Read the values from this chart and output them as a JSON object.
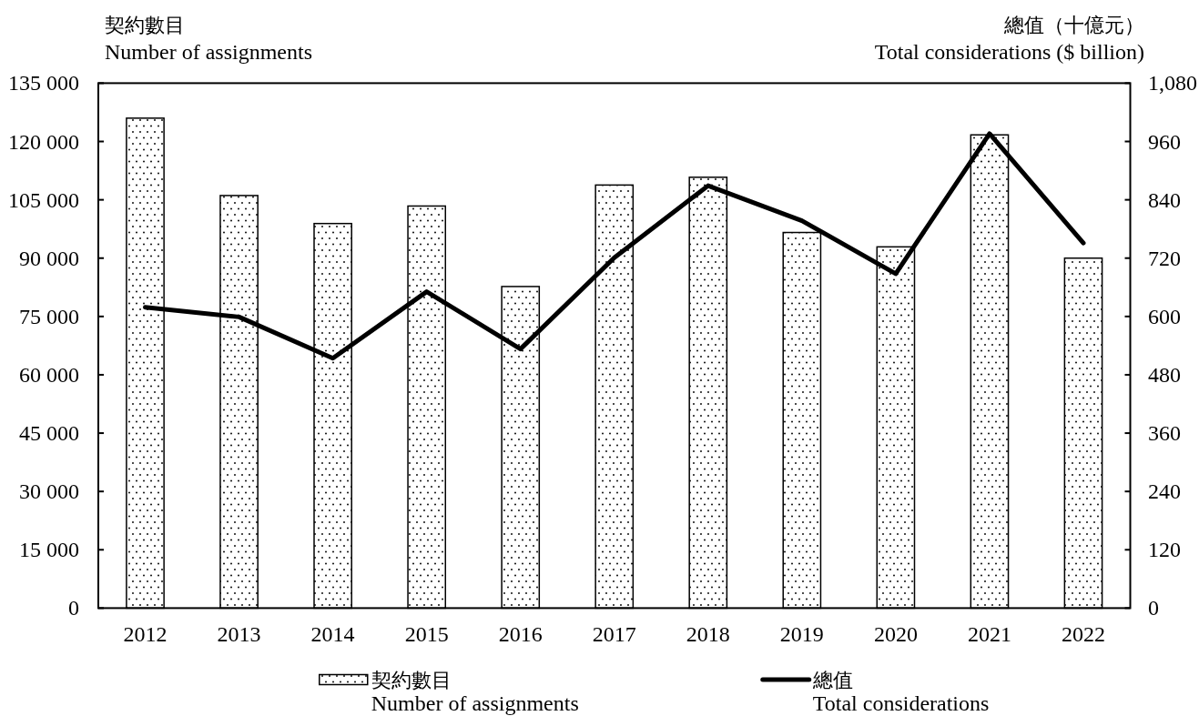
{
  "chart_data": {
    "type": "bar",
    "ylabel": "契約數目\nNumber of assignments",
    "y2label": "總值（十億元）\nTotal considerations ($ billion)",
    "categories": [
      "2012",
      "2013",
      "2014",
      "2015",
      "2016",
      "2017",
      "2018",
      "2019",
      "2020",
      "2021",
      "2022"
    ],
    "series": [
      {
        "name": "契約數目\nNumber of assignments",
        "color": "#000000",
        "values": [
          126000,
          106100,
          98900,
          103400,
          82700,
          108800,
          110800,
          96600,
          92900,
          121700,
          90000
        ]
      },
      {
        "name": "總值\nTotal considerations",
        "type": "line",
        "axis": "y2",
        "color": "#000000",
        "values": [
          619,
          599,
          514,
          651,
          533,
          721,
          869,
          797,
          688,
          976,
          751
        ]
      }
    ],
    "ylim": [
      0,
      135000
    ],
    "yticks": [
      0,
      {
        "value": 15000,
        "label": "15 000"
      },
      {
        "value": 30000,
        "label": "30 000"
      },
      {
        "value": 45000,
        "label": "45 000"
      },
      {
        "value": 60000,
        "label": "60 000"
      },
      {
        "value": 75000,
        "label": "75 000"
      },
      {
        "value": 90000,
        "label": "90 000"
      },
      {
        "value": 105000,
        "label": "105 000"
      },
      {
        "value": 120000,
        "label": "120 000"
      },
      {
        "value": 135000,
        "label": "135 000"
      }
    ],
    "y2lim": [
      0,
      1080
    ],
    "y2ticks": [
      0,
      120,
      240,
      360,
      480,
      600,
      720,
      840,
      960,
      {
        "value": 1080,
        "label": "1,080"
      }
    ],
    "legend": "bottom",
    "grid": false
  }
}
